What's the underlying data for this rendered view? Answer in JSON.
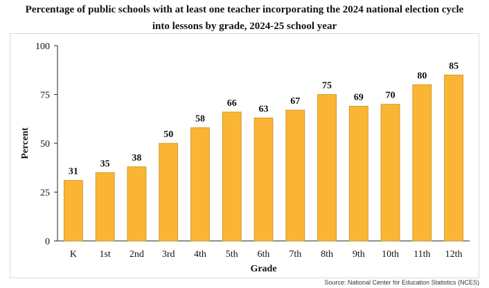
{
  "title_lines": [
    "Percentage of public schools with at least one teacher incorporating the 2024 national election cycle",
    "into lessons by grade, 2024-25 school year"
  ],
  "source": "Source: National Center for Education Statistics (NCES)",
  "colors": {
    "bar": "#fbb535",
    "bar_edge": "#c8901f",
    "axis": "#222222"
  },
  "chart_data": {
    "type": "bar",
    "title": "Percentage of public schools with at least one teacher incorporating the 2024 national election cycle into lessons by grade, 2024-25 school year",
    "xlabel": "Grade",
    "ylabel": "Percent",
    "categories": [
      "K",
      "1st",
      "2nd",
      "3rd",
      "4th",
      "5th",
      "6th",
      "7th",
      "8th",
      "9th",
      "10th",
      "11th",
      "12th"
    ],
    "values": [
      31,
      35,
      38,
      50,
      58,
      66,
      63,
      67,
      75,
      69,
      70,
      80,
      85
    ],
    "ylim": [
      0,
      100
    ],
    "yticks": [
      0,
      25,
      50,
      75,
      100
    ],
    "grid": false,
    "data_labels": true
  }
}
